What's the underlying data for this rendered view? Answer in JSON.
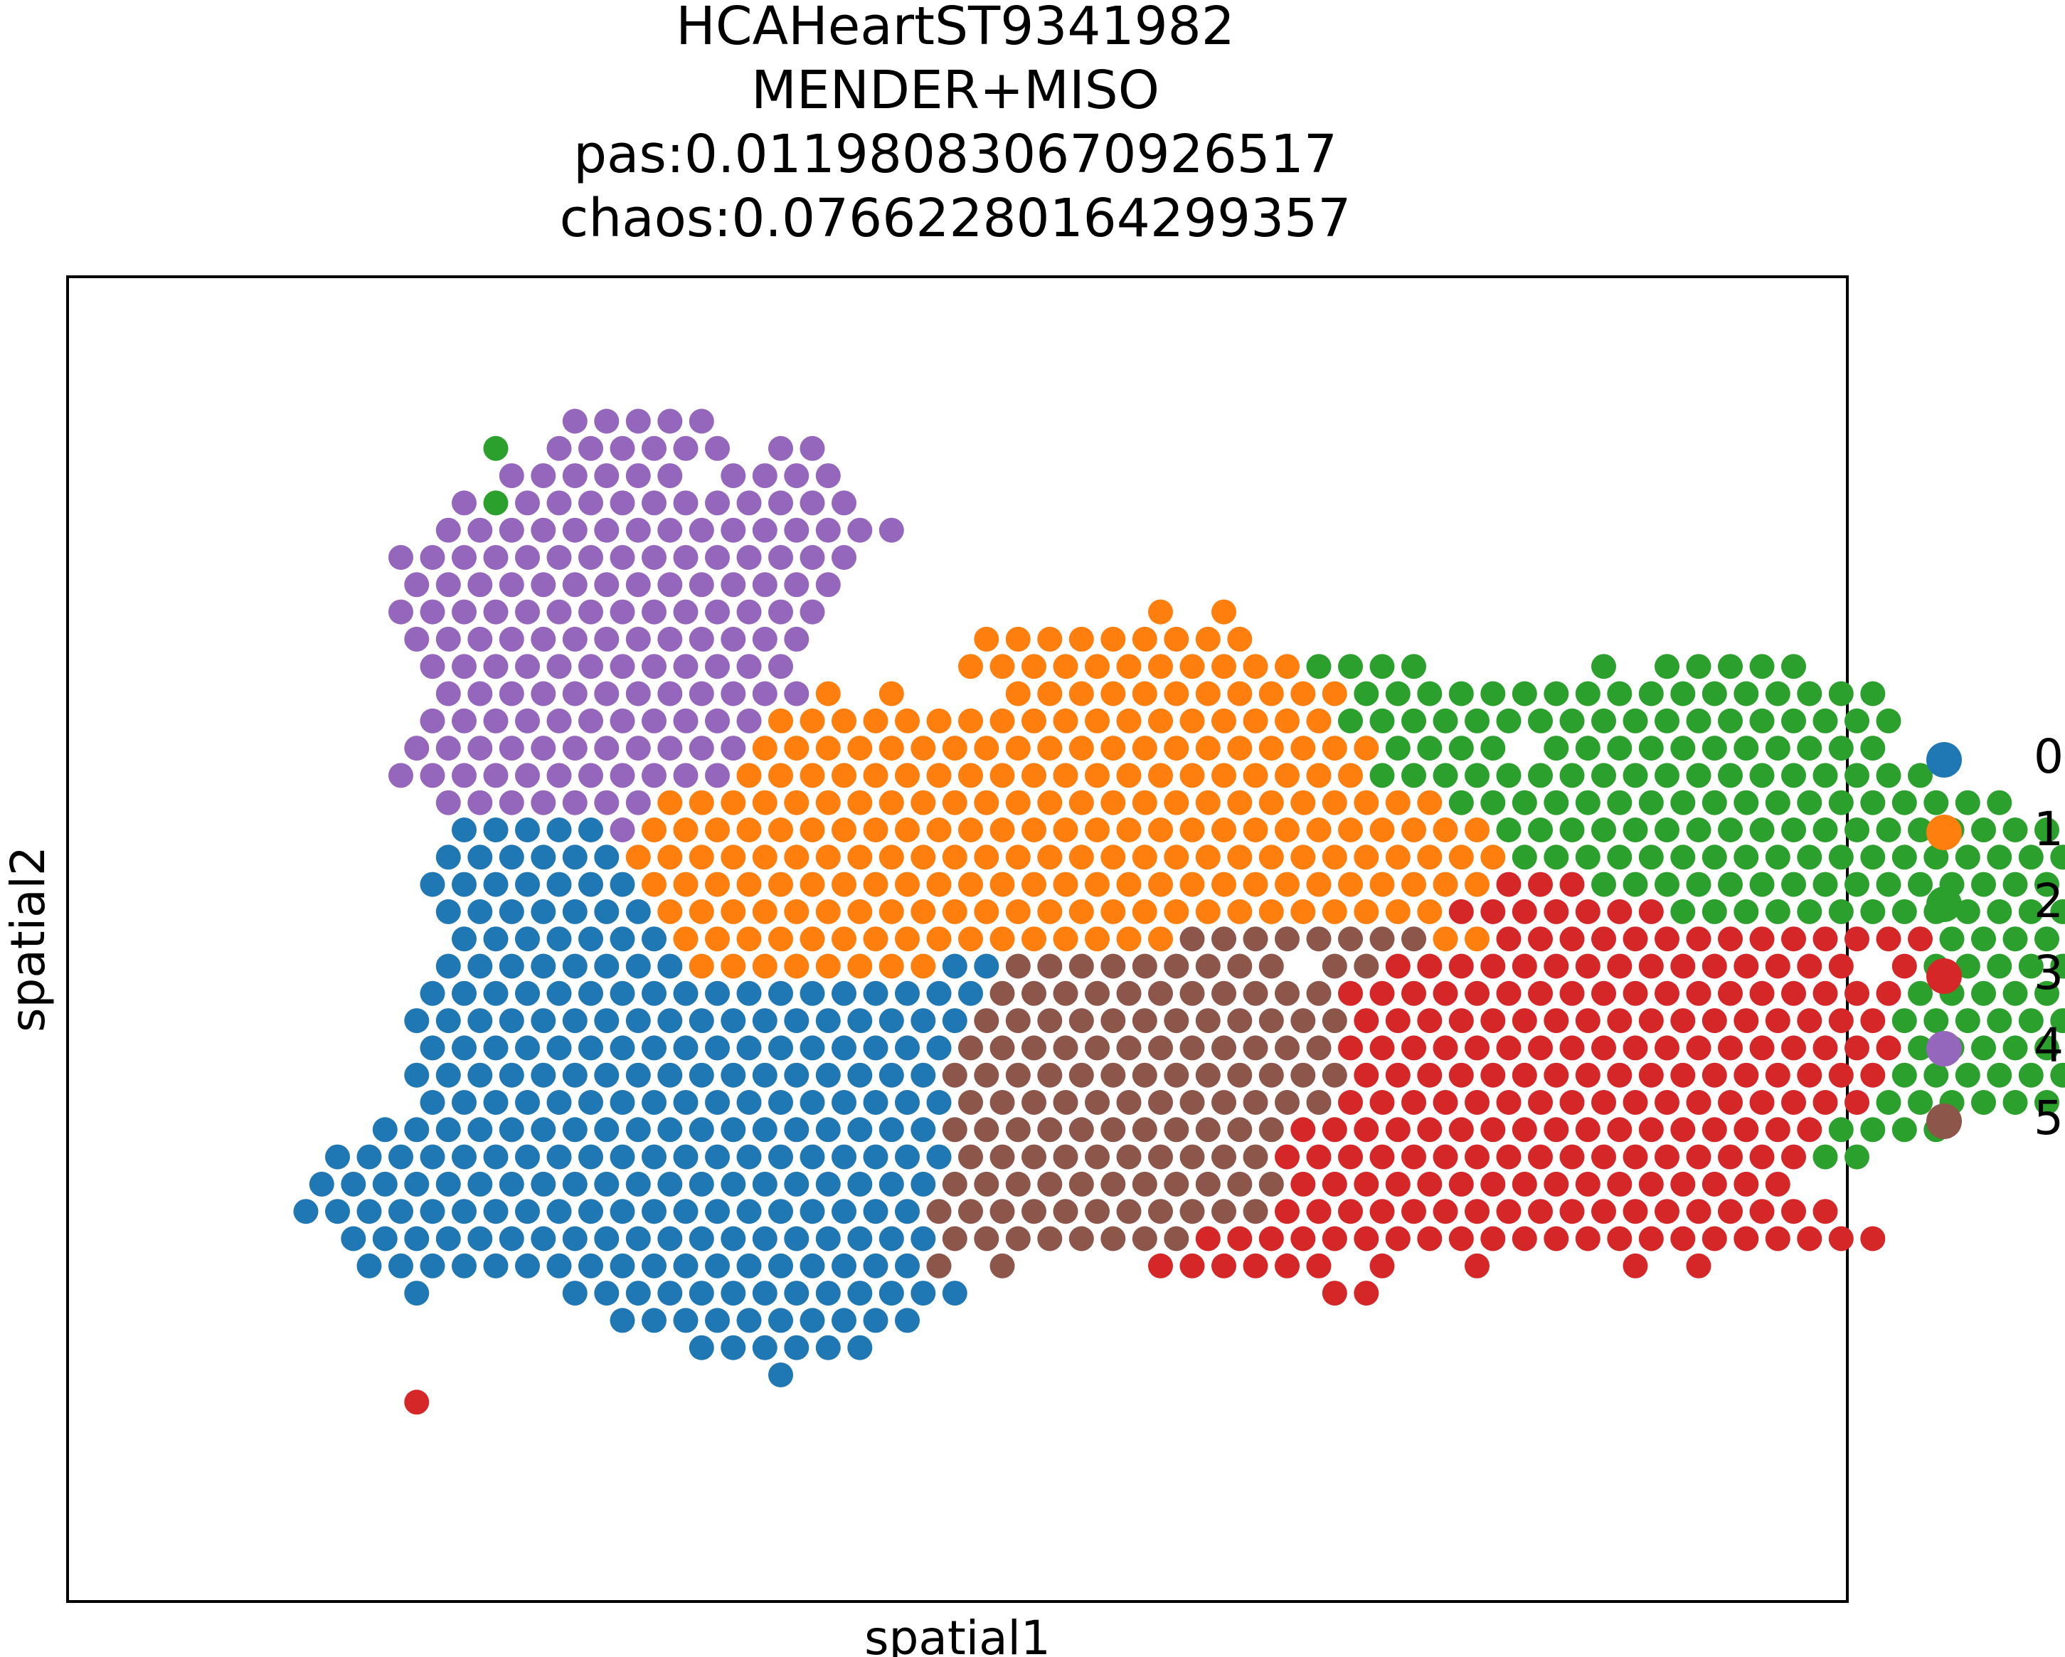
{
  "chart_data": {
    "type": "scatter",
    "title_lines": [
      "HCAHeartST9341982",
      "MENDER+MISO",
      "pas:0.011980830670926517",
      "chaos:0.07662280164299357"
    ],
    "xlabel": "spatial1",
    "ylabel": "spatial2",
    "grid": false,
    "legend_position": "right",
    "legend": {
      "0": "0",
      "1": "1",
      "2": "2",
      "3": "3",
      "4": "4",
      "5": "5"
    },
    "colors": {
      "0": "#1f77b4",
      "1": "#ff7f0e",
      "2": "#2ca02c",
      "3": "#d62728",
      "4": "#9467bd",
      "5": "#8c564b"
    },
    "encoding": "grid of spots; row r is y (r=0 top), col c is x in half-spot units; each row string starts at column 'start' and each character is a cluster id, '.' = no spot",
    "rows": [
      {
        "r": 0,
        "start": 27,
        "s": "4.4.4.4.4"
      },
      {
        "r": 1,
        "start": 22,
        "s": "2...4.4.4.4.4.4...4.4"
      },
      {
        "r": 2,
        "start": 23,
        "s": "4.4.4.4.4.4...4.4.4.4"
      },
      {
        "r": 3,
        "start": 20,
        "s": "4.2.4.4.4.4.4.4.4.4.4.4.4"
      },
      {
        "r": 4,
        "start": 19,
        "s": "4.4.4.4.4.4.4.4.4.4.4.4.4.4.4"
      },
      {
        "r": 5,
        "start": 16,
        "s": "4.4.4.4.4.4.4.4.4.4.4.4.4.4.4"
      },
      {
        "r": 6,
        "start": 17,
        "s": "4.4.4.4.4.4.4.4.4.4.4.4.4.4"
      },
      {
        "r": 7,
        "start": 16,
        "s": "4.4.4.4.4.4.4.4.4.4.4.4.4.4.....................1...1"
      },
      {
        "r": 8,
        "start": 17,
        "s": "4.4.4.4.4.4.4.4.4.4.4.4.4...........1.1.1.1.1.1.1.1.1"
      },
      {
        "r": 9,
        "start": 18,
        "s": "4.4.4.4.4.4.4.4.4.4.4.4...........1.1.1.1.1.1.1.1.1.1.1.2.2.2.2...........2...2.2.2.2.2"
      },
      {
        "r": 10,
        "start": 19,
        "s": "4.4.4.4.4.4.4.4.4.4.4.4.1...1.......1.1.1.1.1.1.1.1.1.1.1.2.2.2.2.2.2.2.2.2.2.2.2.2.2.2.2.2"
      },
      {
        "r": 11,
        "start": 18,
        "s": "4.4.4.4.4.4.4.4.4.4.4.1.1.1.1.1.1.1.1.1.1.1.1.1.1.1.1.1.1.2.2.2.2.2.2.2.2.2.2.2.2.2.2.2.2.2.2"
      },
      {
        "r": 12,
        "start": 17,
        "s": "4.4.4.4.4.4.4.4.4.4.4.1.1.1.1.1.1.1.1.1.1.1.1.1.1.1.1.1.1.1.1.2.2.2.2...2.2.2.2.2.2.2.2.2.2.2"
      },
      {
        "r": 13,
        "start": 16,
        "s": "4.4.4.4.4.4.4.4.4.4.4.1.1.1.1.1.1.1.1.1.1.1.1.1.1.1.1.1.1.1.1.2.2.2.2.2.2.2.2.2.2.2.2.2.2.2.2.2.2"
      },
      {
        "r": 14,
        "start": 19,
        "s": "4.4.4.4.4.4.4.1.1.1.1.1.1.1.1.1.1.1.1.1.1.1.1.1.1.1.1.1.1.1.1.1.2.2.2.2.2.2.2.2.2.2.2.2.2.2.2.2.2.2"
      },
      {
        "r": 15,
        "start": 20,
        "s": "0.0.0.0.0.4.1.1.1.1.1.1.1.1.1.1.1.1.1.1.1.1.1.1.1.1.1.1.1.1.1.1.1.2.2.2.2.2.2.2.2.2.2.2.2.2.2.2.2.2.2"
      },
      {
        "r": 16,
        "start": 19,
        "s": "0.0.0.0.0.0.1.1.1.1.1.1.1.1.1.1.1.1.1.1.1.1.1.1.1.1.1.1.1.1.1.1.1.1.2.2.2.2.2.2.2.2.2.2.2.2.2.2.2.2.2.2"
      },
      {
        "r": 17,
        "start": 18,
        "s": "0.0.0.0.0.0.0.1.1.1.1.1.1.1.1.1.1.1.1.1.1.1.1.1.1.1.1.1.1.1.1.1.1.1.3.3.3.2.2.2.2.2.2.2.2.2.2.2.2.2.2.2.2.2.2"
      },
      {
        "r": 18,
        "start": 19,
        "s": "0.0.0.0.0.0.0.1.1.1.1.1.1.1.1.1.1.1.1.1.1.1.1.1.1.1.1.1.1.1.1.1.3.3.3.3.3.3.3.2.2.2.2.2.2.2.2.2.2.2.2.2.2.2.2"
      },
      {
        "r": 19,
        "start": 20,
        "s": "0.0.0.0.0.0.0.1.1.1.1.1.1.1.1.1.1.1.1.1.1.1.1.5.5.5.5.5.5.5.5.1.1.3.3.3.3.3.3.3.3.3.3.3.3.3.3.2.2.2.2.2.2.2.2.2.2.2"
      },
      {
        "r": 20,
        "start": 19,
        "s": "0.0.0.0.0.0.0.0.1.1.1.1.1.1.1.1.0.0.5.5.5.5.5.5.5.5.5...5.5.3.3.3.3.3.3.3.3.3.3.3.3.3.3.3...3.2.2.2.2.2.2.2.2.2.2"
      },
      {
        "r": 21,
        "start": 18,
        "s": "0.0.0.0.0.0.0.0.0.0.0.0.0.0.0.0.0.0.5.5.5.5.5.5.5.5.5.5.5.3.3.3.3.3.3.3.3.3.3.3.3.3.3.3.3.3.3.2.2.2.2.2.2.2"
      },
      {
        "r": 22,
        "start": 17,
        "s": "0.0.0.0.0.0.0.0.0.0.0.0.0.0.0.0.0.0.5.5.5.5.5.5.5.5.5.5.5.5.3.3.3.3.3.3.3.3.3.3.3.3.3.3.3.3.3.2.2.2.2.2.2"
      },
      {
        "r": 23,
        "start": 18,
        "s": "0.0.0.0.0.0.0.0.0.0.0.0.0.0.0.0.0.5.5.5.5.5.5.5.5.5.5.5.5.3.3.3.3.3.3.3.3.3.3.3.3.3.3.3.3.3.3.2.2.2.2.2.2"
      },
      {
        "r": 24,
        "start": 17,
        "s": "0.0.0.0.0.0.0.0.0.0.0.0.0.0.0.0.0.5.5.5.5.5.5.5.5.5.5.5.5.5.3.3.3.3.3.3.3.3.3.3.3.3.3.3.3.3.3.2.2.2.2.2.2"
      },
      {
        "r": 25,
        "start": 18,
        "s": "0.0.0.0.0.0.0.0.0.0.0.0.0.0.0.0.0.5.5.5.5.5.5.5.5.5.5.5.5.3.3.3.3.3.3.3.3.3.3.3.3.3.3.3.3.3.2.2.2.2.2.2"
      },
      {
        "r": 26,
        "start": 15,
        "s": "0.0.0.0.0.0.0.0.0.0.0.0.0.0.0.0.0.0.5.5.5.5.5.5.5.5.5.5.5.3.3.3.3.3.3.3.3.3.3.3.3.3.3.3.3.3.2.2.2.2"
      },
      {
        "r": 27,
        "start": 12,
        "s": "0.0.0.0.0.0.0.0.0.0.0.0.0.0.0.0.0.0.0.0.5.5.5.5.5.5.5.5.5.5.3.3.3.3.3.3.3.3.3.3.3.3.3.3.3.3.3.2.2"
      },
      {
        "r": 28,
        "start": 11,
        "s": "0.0.0.0.0.0.0.0.0.0.0.0.0.0.0.0.0.0.0.0.5.5.5.5.5.5.5.5.5.5.5.3.3.3.3.3.3.3.3.3.3.3.3.3.3.3.3"
      },
      {
        "r": 29,
        "start": 10,
        "s": "0.0.0.0.0.0.0.0.0.0.0.0.0.0.0.0.0.0.0.0.5.5.5.5.5.5.5.5.5.5.5.3.3.3.3.3.3.3.3.3.3.3.3.3.3.3.3.3.3"
      },
      {
        "r": 30,
        "start": 13,
        "s": "0.0.0.0.0.0.0.0.0.0.0.0.0.0.0.0.0.0.0.5.5.5.5.5.5.5.5.3.3.3.3.3.3.3.3.3.3.3.3.3.3.3.3.3.3.3.3.3.3"
      },
      {
        "r": 31,
        "start": 14,
        "s": "0.0.0.0.0.0.0.0.0.0.0.0.0.0.0.0.0.0.5...5.........3.3.3.3.3.3...3.....3.........3...3"
      },
      {
        "r": 32,
        "start": 17,
        "s": "0.........0.0.0.0.0.0.0.0.0.0.0.0.0.......................3.3"
      },
      {
        "r": 33,
        "start": 30,
        "s": "0.0.0.0.0.0.0.0.0.0"
      },
      {
        "r": 34,
        "start": 35,
        "s": "0.0.0.0.0.0"
      },
      {
        "r": 35,
        "start": 40,
        "s": "0"
      },
      {
        "r": 36,
        "start": 17,
        "s": "3"
      }
    ]
  }
}
